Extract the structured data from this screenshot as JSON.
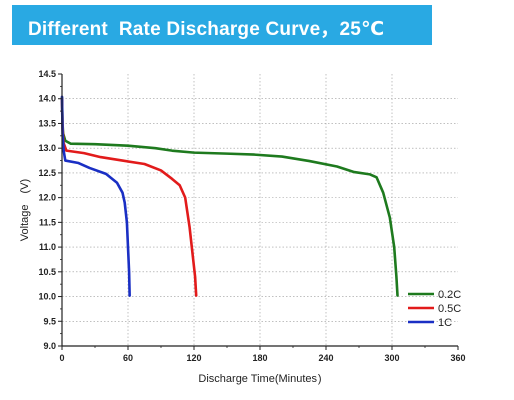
{
  "banner": {
    "title": "Different  Rate Discharge Curve，25℃",
    "color": "#29a9e3"
  },
  "chart_data": {
    "type": "line",
    "title": "Different  Rate Discharge Curve，25℃",
    "xlabel": "Discharge Time(Minutes )",
    "ylabel": "Voltage　(V)",
    "xlim": [
      0,
      360
    ],
    "ylim": [
      9.0,
      14.5
    ],
    "xticks": [
      0,
      60,
      120,
      180,
      240,
      300,
      360
    ],
    "yticks": [
      9.0,
      9.5,
      10.0,
      10.5,
      11.0,
      11.5,
      12.0,
      12.5,
      13.0,
      13.5,
      14.0,
      14.5
    ],
    "grid": true,
    "legend_position": "bottom-right",
    "series": [
      {
        "name": "0.2C",
        "color": "#1e7a1e",
        "points": [
          [
            0,
            14.02
          ],
          [
            0.5,
            13.5
          ],
          [
            1,
            13.3
          ],
          [
            3,
            13.15
          ],
          [
            8,
            13.09
          ],
          [
            30,
            13.08
          ],
          [
            60,
            13.05
          ],
          [
            85,
            13.0
          ],
          [
            100,
            12.95
          ],
          [
            120,
            12.91
          ],
          [
            150,
            12.89
          ],
          [
            175,
            12.87
          ],
          [
            200,
            12.83
          ],
          [
            225,
            12.74
          ],
          [
            250,
            12.63
          ],
          [
            265,
            12.52
          ],
          [
            280,
            12.47
          ],
          [
            286,
            12.41
          ],
          [
            292,
            12.1
          ],
          [
            298,
            11.6
          ],
          [
            302,
            11.0
          ],
          [
            304,
            10.4
          ],
          [
            305,
            10.02
          ]
        ]
      },
      {
        "name": "0.5C",
        "color": "#e21b1b",
        "points": [
          [
            0,
            14.0
          ],
          [
            0.5,
            13.4
          ],
          [
            1.5,
            13.1
          ],
          [
            4,
            12.95
          ],
          [
            20,
            12.9
          ],
          [
            35,
            12.82
          ],
          [
            55,
            12.75
          ],
          [
            75,
            12.68
          ],
          [
            90,
            12.55
          ],
          [
            100,
            12.38
          ],
          [
            107,
            12.25
          ],
          [
            112,
            12.0
          ],
          [
            116,
            11.4
          ],
          [
            119,
            10.8
          ],
          [
            121,
            10.4
          ],
          [
            122,
            10.02
          ]
        ]
      },
      {
        "name": "1C",
        "color": "#1a2fc4",
        "points": [
          [
            0,
            14.04
          ],
          [
            0.5,
            13.3
          ],
          [
            1.5,
            12.95
          ],
          [
            3,
            12.75
          ],
          [
            15,
            12.7
          ],
          [
            25,
            12.6
          ],
          [
            40,
            12.48
          ],
          [
            50,
            12.3
          ],
          [
            55,
            12.1
          ],
          [
            57,
            11.9
          ],
          [
            59,
            11.5
          ],
          [
            60,
            11.0
          ],
          [
            61,
            10.5
          ],
          [
            61.5,
            10.02
          ]
        ]
      }
    ]
  }
}
